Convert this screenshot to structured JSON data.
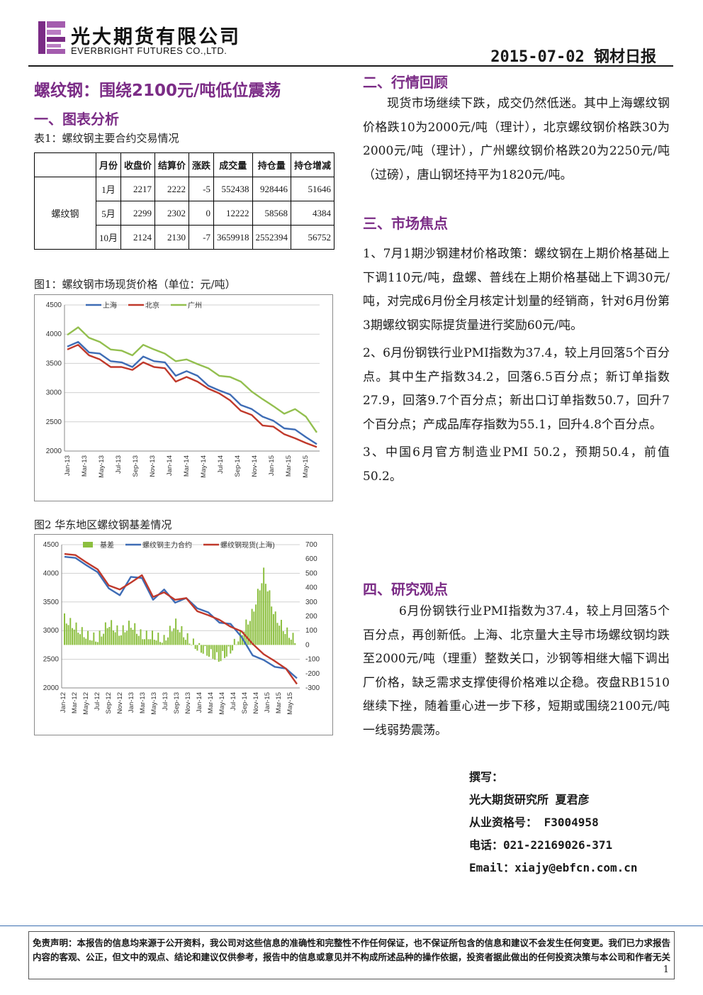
{
  "header": {
    "company_cn": "光大期货有限公司",
    "company_en": "EVERBRIGHT FUTURES CO.,LTD.",
    "date_title": "2015-07-02 钢材日报"
  },
  "title": "螺纹钢：围绕2100元/吨低位震荡",
  "section1": {
    "heading": "一、图表分析",
    "table_caption": "表1：螺纹钢主要合约交易情况",
    "table": {
      "headers": [
        "月份",
        "收盘价",
        "结算价",
        "涨跌",
        "成交量",
        "持仓量",
        "持仓增减"
      ],
      "row_label": "螺纹钢",
      "rows": [
        [
          "1月",
          "2217",
          "2222",
          "-5",
          "552438",
          "928446",
          "51646"
        ],
        [
          "5月",
          "2299",
          "2302",
          "0",
          "12222",
          "58568",
          "4384"
        ],
        [
          "10月",
          "2124",
          "2130",
          "-7",
          "3659918",
          "2552394",
          "56752"
        ]
      ]
    },
    "fig1_caption": "图1：螺纹钢市场现货价格（单位：元/吨）",
    "fig2_caption": "图2 华东地区螺纹钢基差情况"
  },
  "chart_data": [
    {
      "type": "line",
      "title": "",
      "ylim": [
        2000,
        4500
      ],
      "yticks": [
        "4500",
        "4000",
        "3500",
        "3000",
        "2500",
        "2000"
      ],
      "xticks": [
        "Jan-13",
        "Mar-13",
        "May-13",
        "Jul-13",
        "Sep-13",
        "Nov-13",
        "Jan-14",
        "Mar-14",
        "May-14",
        "Jul-14",
        "Sep-14",
        "Nov-14",
        "Jan-15",
        "Mar-15",
        "May-15"
      ],
      "legend_position": "top",
      "grid": true,
      "series": [
        {
          "name": "上海",
          "color": "#3e6cb5",
          "values": [
            3800,
            3850,
            3700,
            3650,
            3550,
            3500,
            3450,
            3600,
            3550,
            3500,
            3300,
            3350,
            3300,
            3100,
            3050,
            2950,
            2800,
            2700,
            2600,
            2500,
            2400,
            2350,
            2250,
            2100
          ]
        },
        {
          "name": "北京",
          "color": "#c0392b",
          "values": [
            3750,
            3800,
            3650,
            3550,
            3450,
            3420,
            3400,
            3500,
            3450,
            3400,
            3200,
            3250,
            3200,
            3050,
            3000,
            2850,
            2700,
            2600,
            2450,
            2400,
            2300,
            2200,
            2150,
            2050
          ]
        },
        {
          "name": "广州",
          "color": "#93bf4f",
          "values": [
            4000,
            4100,
            3950,
            3850,
            3750,
            3700,
            3650,
            3800,
            3750,
            3650,
            3550,
            3550,
            3500,
            3400,
            3300,
            3250,
            3200,
            3000,
            2900,
            2750,
            2650,
            2700,
            2600,
            2300
          ]
        }
      ]
    },
    {
      "type": "line",
      "title": "",
      "ylim": [
        2000,
        4500
      ],
      "y2lim": [
        -300,
        700
      ],
      "yticks": [
        "4500",
        "4000",
        "3500",
        "3000",
        "2500",
        "2000"
      ],
      "y2ticks": [
        "700",
        "600",
        "500",
        "400",
        "300",
        "200",
        "100",
        "0",
        "-100",
        "-200",
        "-300"
      ],
      "xticks": [
        "Jan-12",
        "Mar-12",
        "May-12",
        "Jul-12",
        "Sep-12",
        "Nov-12",
        "Jan-13",
        "Mar-13",
        "May-13",
        "Jul-13",
        "Sep-13",
        "Nov-13",
        "Jan-14",
        "Mar-14",
        "May-14",
        "Jul-14",
        "Sep-14",
        "Nov-14",
        "Jan-15",
        "Mar-15",
        "May-15"
      ],
      "legend_position": "top",
      "series": [
        {
          "name": "基差",
          "color": "#8cbf3f",
          "axis": "right",
          "values": [
            180,
            120,
            60,
            40,
            150,
            80,
            140,
            60,
            60,
            30,
            150,
            50,
            -20,
            -60,
            -100,
            -40,
            80,
            220,
            500,
            200,
            90,
            20
          ]
        },
        {
          "name": "螺纹钢主力合约",
          "color": "#3e6cb5",
          "values": [
            4300,
            4250,
            4150,
            4000,
            3750,
            3600,
            3950,
            3900,
            3550,
            3700,
            3500,
            3550,
            3400,
            3300,
            3150,
            3100,
            2900,
            2550,
            2500,
            2350,
            2350,
            2150
          ]
        },
        {
          "name": "螺纹钢现货(上海)",
          "color": "#c0392b",
          "values": [
            4350,
            4300,
            4200,
            4050,
            3800,
            3700,
            3850,
            3950,
            3600,
            3650,
            3550,
            3550,
            3350,
            3250,
            3200,
            3050,
            3000,
            2750,
            2600,
            2450,
            2350,
            2050
          ]
        }
      ]
    }
  ],
  "section2": {
    "heading": "二、行情回顾",
    "text": "现货市场继续下跌，成交仍然低迷。其中上海螺纹钢价格跌10为2000元/吨（理计），北京螺纹钢价格跌30为2000元/吨（理计），广州螺纹钢价格跌20为2250元/吨（过磅），唐山钢坯持平为1820元/吨。"
  },
  "section3": {
    "heading": "三、市场焦点",
    "items": [
      "1、7月1期沙钢建材价格政策：螺纹钢在上期价格基础上下调110元/吨，盘螺、普线在上期价格基础上下调30元/吨，对完成6月份全月核定计划量的经销商，针对6月份第3期螺纹钢实际提货量进行奖励60元/吨。",
      "2、6月份钢铁行业PMI指数为37.4，较上月回落5个百分点。其中生产指数34.2，回落6.5百分点；新订单指数27.9，回落9.7个百分点；新出口订单指数50.7，回升7个百分点；产成品库存指数为55.1，回升4.8个百分点。",
      "3、中国6月官方制造业PMI 50.2，预期50.4，前值50.2。"
    ]
  },
  "section4": {
    "heading": "四、研究观点",
    "text": "6月份钢铁行业PMI指数为37.4，较上月回落5个百分点，再创新低。上海、北京量大主导市场螺纹钢均跌至2000元/吨（理重）整数关口，沙钢等相继大幅下调出厂价格，缺乏需求支撑使得价格难以企稳。夜盘RB1510继续下挫，随着重心进一步下移，短期或围绕2100元/吨一线弱势震荡。"
  },
  "author": {
    "label": "撰写：",
    "name": "光大期货研究所 夏君彦",
    "license": "从业资格号： F3004958",
    "phone": "电话：021-22169026-371",
    "email": "Email：xiajy@ebfcn.com.cn"
  },
  "footer": {
    "disclaimer": "免责声明：本报告的信息均来源于公开资料，我公司对这些信息的准确性和完整性不作任何保证，也不保证所包含的信息和建议不会发生任何变更。我们已力求报告内容的客观、公正，但文中的观点、结论和建议仅供参考，报告中的信息或意见并不构成所述品种的操作依据，投资者据此做出的任何投资决策与本公司和作者无关",
    "page": "1"
  }
}
